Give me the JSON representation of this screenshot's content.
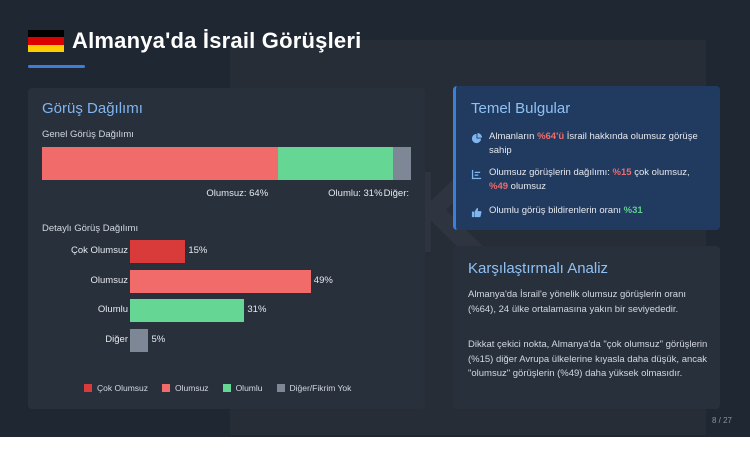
{
  "header": {
    "title": "Almanya'da İsrail Görüşleri",
    "flag_colors": [
      "#000000",
      "#dd0000",
      "#ffce00"
    ]
  },
  "distribution": {
    "title": "Görüş Dağılımı",
    "general_subtitle": "Genel Görüş Dağılımı",
    "detailed_subtitle": "Detaylı Görüş Dağılımı",
    "stacked": [
      {
        "name": "Olumsuz",
        "value": 64,
        "label": "Olumsuz: 64%",
        "color": "#f26b6b"
      },
      {
        "name": "Olumlu",
        "value": 31,
        "label": "Olumlu: 31%",
        "color": "#66d695"
      },
      {
        "name": "Diğer",
        "value": 5,
        "label": "Diğer: ",
        "color": "#7d8796"
      }
    ],
    "legend": [
      {
        "label": "Çok Olumsuz",
        "color": "#d93a3a"
      },
      {
        "label": "Olumsuz",
        "color": "#f26b6b"
      },
      {
        "label": "Olumlu",
        "color": "#66d695"
      },
      {
        "label": "Diğer/Fikrim Yok",
        "color": "#7d8796"
      }
    ]
  },
  "chart_data": {
    "type": "bar",
    "orientation": "horizontal",
    "categories": [
      "Çok Olumsuz",
      "Olumsuz",
      "Olumlu",
      "Diğer"
    ],
    "values": [
      15,
      49,
      31,
      5
    ],
    "value_labels": [
      "15%",
      "49%",
      "31%",
      "5%"
    ],
    "colors": [
      "#d93a3a",
      "#f26b6b",
      "#66d695",
      "#7d8796"
    ],
    "xlim": [
      0,
      100
    ]
  },
  "findings": {
    "title": "Temel Bulgular",
    "items": [
      {
        "icon": "pie-chart-icon",
        "parts": [
          {
            "t": "Almanların ",
            "c": ""
          },
          {
            "t": "%64'ü",
            "c": "hl-red"
          },
          {
            "t": " İsrail hakkında olumsuz görüşe sahip",
            "c": ""
          }
        ]
      },
      {
        "icon": "bar-list-icon",
        "parts": [
          {
            "t": "Olumsuz görüşlerin dağılımı: ",
            "c": ""
          },
          {
            "t": "%15",
            "c": "hl-red"
          },
          {
            "t": " çok olumsuz, ",
            "c": ""
          },
          {
            "t": "%49",
            "c": "hl-red"
          },
          {
            "t": " olumsuz",
            "c": ""
          }
        ]
      },
      {
        "icon": "thumbs-up-icon",
        "parts": [
          {
            "t": "Olumlu görüş bildirenlerin oranı ",
            "c": ""
          },
          {
            "t": "%31",
            "c": "hl-green"
          }
        ]
      }
    ]
  },
  "comparison": {
    "title": "Karşılaştırmalı Analiz",
    "paragraph_1": "Almanya'da İsrail'e yönelik olumsuz görüşlerin oranı (%64), 24 ülke ortalamasına yakın bir seviyededir.",
    "paragraph_2": "Dikkat çekici nokta, Almanya'da \"çok olumsuz\" görüşlerin (%15) diğer Avrupa ülkelerine kıyasla daha düşük, ancak \"olumsuz\" görüşlerin (%49) daha yüksek olmasıdır."
  },
  "page_number": "8 / 27",
  "bg_glyph": "K"
}
